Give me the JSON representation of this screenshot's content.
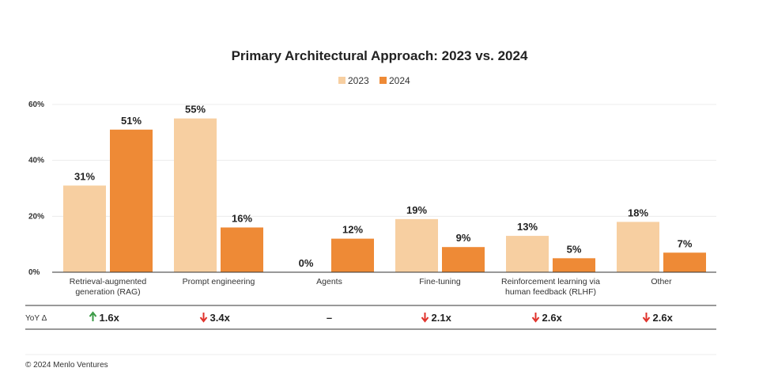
{
  "chart_data": {
    "type": "bar",
    "title": "Primary Architectural Approach: 2023 vs. 2024",
    "categories": [
      [
        "Retrieval-augmented",
        "generation (RAG)"
      ],
      [
        "Prompt engineering"
      ],
      [
        "Agents"
      ],
      [
        "Fine-tuning"
      ],
      [
        "Reinforcement learning via",
        "human feedback (RLHF)"
      ],
      [
        "Other"
      ]
    ],
    "series": [
      {
        "name": "2023",
        "color": "#f7cfa1",
        "values": [
          31,
          55,
          0,
          19,
          13,
          18
        ]
      },
      {
        "name": "2024",
        "color": "#ee8a36",
        "values": [
          51,
          16,
          12,
          9,
          5,
          7
        ]
      }
    ],
    "ylim": [
      0,
      60
    ],
    "yticks": [
      0,
      20,
      40,
      60
    ],
    "ytick_suffix": "%",
    "value_suffix": "%",
    "grid": true,
    "legend_position": "top-center"
  },
  "yoy": {
    "label": "YoY Δ",
    "entries": [
      {
        "direction": "up",
        "value": "1.6x"
      },
      {
        "direction": "down",
        "value": "3.4x"
      },
      {
        "direction": "none",
        "value": "–"
      },
      {
        "direction": "down",
        "value": "2.1x"
      },
      {
        "direction": "down",
        "value": "2.6x"
      },
      {
        "direction": "down",
        "value": "2.6x"
      }
    ],
    "colors": {
      "up": "#3a9a45",
      "down": "#e0312a"
    }
  },
  "footer": {
    "credit": "© 2024 Menlo Ventures"
  }
}
